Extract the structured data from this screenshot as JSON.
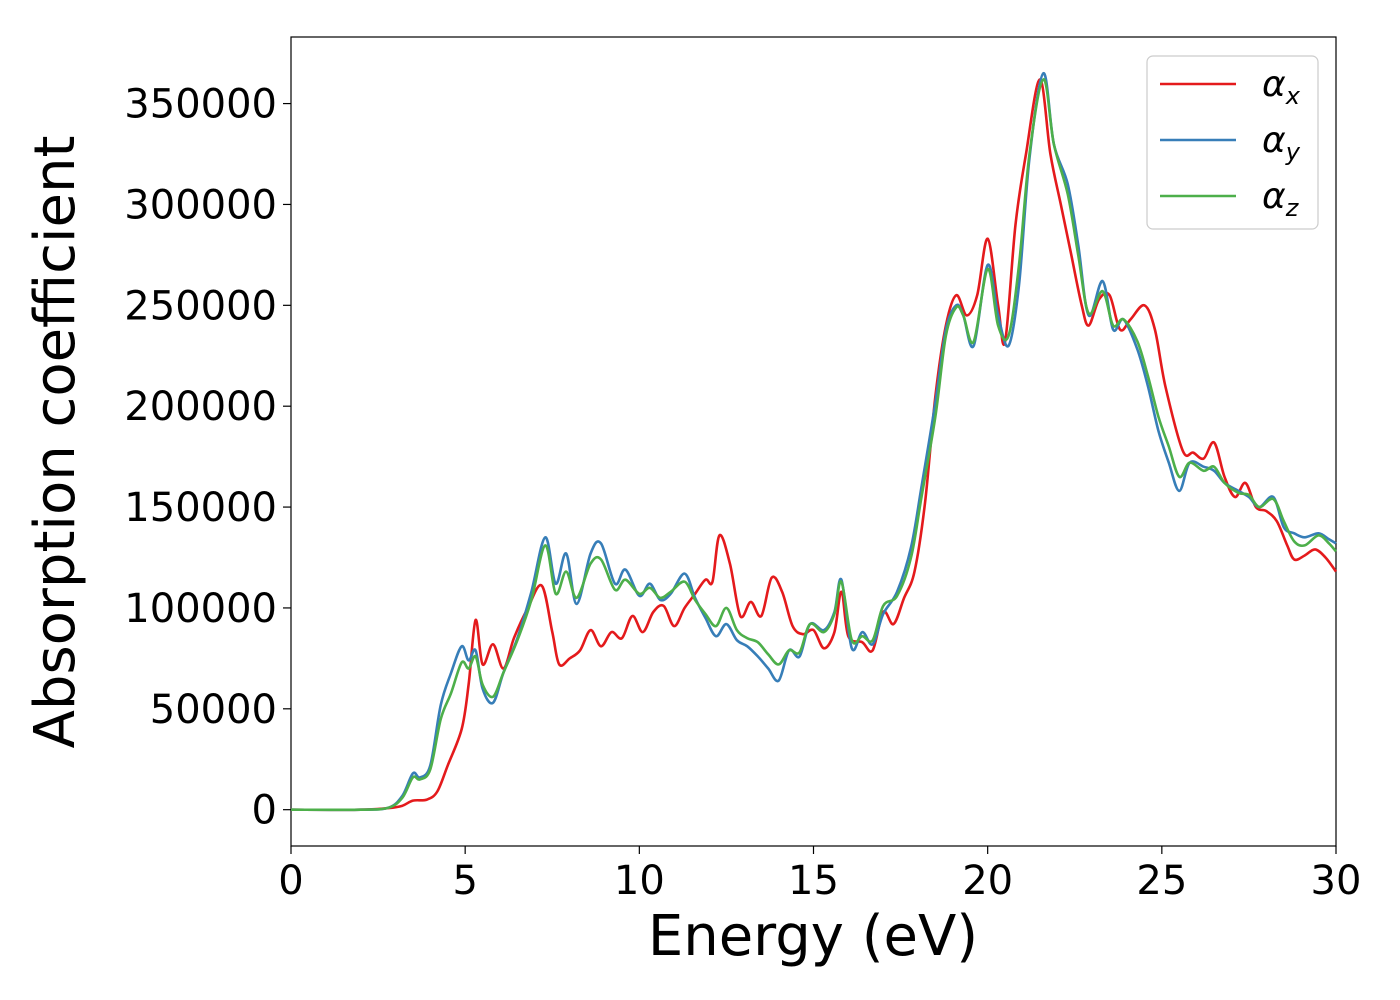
{
  "chart_data": {
    "type": "line",
    "xlabel": "Energy (eV)",
    "ylabel": "Absorption coefficient",
    "xlim": [
      0,
      30
    ],
    "ylim": [
      -18000,
      383000
    ],
    "x_ticks": [
      "0",
      "5",
      "10",
      "15",
      "20",
      "25",
      "30"
    ],
    "y_ticks": [
      "0",
      "50000",
      "100000",
      "150000",
      "200000",
      "250000",
      "300000",
      "350000"
    ],
    "grid": false,
    "legend_position": "top-right",
    "series": [
      {
        "name": "α",
        "subscript": "x",
        "color": "#e41a1c",
        "points": [
          [
            0,
            0
          ],
          [
            2,
            0
          ],
          [
            2.8,
            800
          ],
          [
            3.2,
            2000
          ],
          [
            3.5,
            4500
          ],
          [
            3.9,
            5000
          ],
          [
            4.2,
            9000
          ],
          [
            4.5,
            22000
          ],
          [
            4.9,
            40000
          ],
          [
            5.1,
            62000
          ],
          [
            5.3,
            94000
          ],
          [
            5.5,
            72000
          ],
          [
            5.8,
            82000
          ],
          [
            6.1,
            70000
          ],
          [
            6.4,
            85000
          ],
          [
            6.8,
            100000
          ],
          [
            7.2,
            111000
          ],
          [
            7.5,
            88000
          ],
          [
            7.7,
            72000
          ],
          [
            8.0,
            75000
          ],
          [
            8.3,
            79000
          ],
          [
            8.6,
            89000
          ],
          [
            8.9,
            81000
          ],
          [
            9.2,
            88000
          ],
          [
            9.5,
            85000
          ],
          [
            9.8,
            96000
          ],
          [
            10.1,
            88000
          ],
          [
            10.4,
            98000
          ],
          [
            10.7,
            101000
          ],
          [
            11.0,
            91000
          ],
          [
            11.3,
            100000
          ],
          [
            11.6,
            107000
          ],
          [
            11.9,
            114000
          ],
          [
            12.1,
            113000
          ],
          [
            12.3,
            136000
          ],
          [
            12.6,
            122000
          ],
          [
            12.9,
            96000
          ],
          [
            13.2,
            103000
          ],
          [
            13.5,
            96000
          ],
          [
            13.8,
            115000
          ],
          [
            14.1,
            108000
          ],
          [
            14.4,
            91000
          ],
          [
            14.7,
            87000
          ],
          [
            15.0,
            89000
          ],
          [
            15.3,
            80000
          ],
          [
            15.6,
            88000
          ],
          [
            15.8,
            108000
          ],
          [
            16.0,
            86000
          ],
          [
            16.4,
            83000
          ],
          [
            16.7,
            79000
          ],
          [
            17.0,
            98000
          ],
          [
            17.3,
            92000
          ],
          [
            17.6,
            105000
          ],
          [
            17.9,
            118000
          ],
          [
            18.2,
            152000
          ],
          [
            18.5,
            205000
          ],
          [
            18.8,
            240000
          ],
          [
            19.1,
            255000
          ],
          [
            19.4,
            245000
          ],
          [
            19.7,
            255000
          ],
          [
            20.0,
            283000
          ],
          [
            20.3,
            250000
          ],
          [
            20.5,
            232000
          ],
          [
            20.8,
            290000
          ],
          [
            21.1,
            325000
          ],
          [
            21.5,
            362000
          ],
          [
            21.8,
            325000
          ],
          [
            22.1,
            300000
          ],
          [
            22.4,
            275000
          ],
          [
            22.7,
            250000
          ],
          [
            22.9,
            240000
          ],
          [
            23.2,
            253000
          ],
          [
            23.5,
            255000
          ],
          [
            23.8,
            238000
          ],
          [
            24.1,
            243000
          ],
          [
            24.5,
            250000
          ],
          [
            24.8,
            238000
          ],
          [
            25.1,
            210000
          ],
          [
            25.6,
            178000
          ],
          [
            25.9,
            177000
          ],
          [
            26.2,
            174000
          ],
          [
            26.5,
            182000
          ],
          [
            26.8,
            165000
          ],
          [
            27.1,
            155000
          ],
          [
            27.4,
            162000
          ],
          [
            27.7,
            150000
          ],
          [
            28.0,
            148000
          ],
          [
            28.3,
            143000
          ],
          [
            28.6,
            131000
          ],
          [
            28.8,
            124000
          ],
          [
            29.1,
            126000
          ],
          [
            29.4,
            129000
          ],
          [
            29.7,
            125000
          ],
          [
            30,
            118000
          ]
        ]
      },
      {
        "name": "α",
        "subscript": "y",
        "color": "#377eb8",
        "points": [
          [
            0,
            0
          ],
          [
            2,
            0
          ],
          [
            2.8,
            1000
          ],
          [
            3.2,
            7000
          ],
          [
            3.5,
            18000
          ],
          [
            3.7,
            16000
          ],
          [
            4.0,
            22000
          ],
          [
            4.3,
            52000
          ],
          [
            4.6,
            68000
          ],
          [
            4.9,
            81000
          ],
          [
            5.1,
            74000
          ],
          [
            5.3,
            79000
          ],
          [
            5.5,
            60000
          ],
          [
            5.8,
            53000
          ],
          [
            6.1,
            68000
          ],
          [
            6.5,
            85000
          ],
          [
            6.9,
            108000
          ],
          [
            7.3,
            135000
          ],
          [
            7.6,
            112000
          ],
          [
            7.9,
            127000
          ],
          [
            8.2,
            102000
          ],
          [
            8.6,
            127000
          ],
          [
            8.9,
            132000
          ],
          [
            9.3,
            112000
          ],
          [
            9.6,
            119000
          ],
          [
            10.0,
            106000
          ],
          [
            10.3,
            112000
          ],
          [
            10.6,
            104000
          ],
          [
            10.9,
            107000
          ],
          [
            11.3,
            117000
          ],
          [
            11.6,
            105000
          ],
          [
            11.9,
            95000
          ],
          [
            12.2,
            86000
          ],
          [
            12.5,
            92000
          ],
          [
            12.8,
            84000
          ],
          [
            13.1,
            81000
          ],
          [
            13.4,
            76000
          ],
          [
            13.7,
            70000
          ],
          [
            14.0,
            64000
          ],
          [
            14.3,
            79000
          ],
          [
            14.6,
            76000
          ],
          [
            14.9,
            92000
          ],
          [
            15.3,
            89000
          ],
          [
            15.6,
            98000
          ],
          [
            15.8,
            114000
          ],
          [
            16.1,
            80000
          ],
          [
            16.4,
            88000
          ],
          [
            16.7,
            82000
          ],
          [
            17.0,
            97000
          ],
          [
            17.4,
            108000
          ],
          [
            17.8,
            130000
          ],
          [
            18.1,
            160000
          ],
          [
            18.5,
            202000
          ],
          [
            18.8,
            238000
          ],
          [
            19.1,
            250000
          ],
          [
            19.3,
            245000
          ],
          [
            19.6,
            230000
          ],
          [
            20.0,
            270000
          ],
          [
            20.3,
            245000
          ],
          [
            20.6,
            230000
          ],
          [
            20.9,
            260000
          ],
          [
            21.2,
            323000
          ],
          [
            21.6,
            365000
          ],
          [
            21.9,
            330000
          ],
          [
            22.3,
            310000
          ],
          [
            22.6,
            280000
          ],
          [
            22.9,
            245000
          ],
          [
            23.3,
            262000
          ],
          [
            23.6,
            238000
          ],
          [
            23.9,
            243000
          ],
          [
            24.3,
            228000
          ],
          [
            24.6,
            210000
          ],
          [
            24.9,
            188000
          ],
          [
            25.2,
            172000
          ],
          [
            25.5,
            158000
          ],
          [
            25.8,
            172000
          ],
          [
            26.2,
            170000
          ],
          [
            26.5,
            168000
          ],
          [
            26.8,
            162000
          ],
          [
            27.2,
            158000
          ],
          [
            27.5,
            155000
          ],
          [
            27.8,
            150000
          ],
          [
            28.2,
            155000
          ],
          [
            28.5,
            140000
          ],
          [
            28.8,
            137000
          ],
          [
            29.1,
            135000
          ],
          [
            29.5,
            137000
          ],
          [
            29.8,
            134000
          ],
          [
            30,
            132000
          ]
        ]
      },
      {
        "name": "α",
        "subscript": "z",
        "color": "#4daf4a",
        "points": [
          [
            0,
            0
          ],
          [
            2,
            0
          ],
          [
            2.8,
            1000
          ],
          [
            3.2,
            6000
          ],
          [
            3.5,
            16000
          ],
          [
            3.7,
            15000
          ],
          [
            4.0,
            20000
          ],
          [
            4.3,
            45000
          ],
          [
            4.6,
            58000
          ],
          [
            4.9,
            73000
          ],
          [
            5.1,
            70000
          ],
          [
            5.3,
            76000
          ],
          [
            5.5,
            62000
          ],
          [
            5.8,
            56000
          ],
          [
            6.1,
            68000
          ],
          [
            6.5,
            84000
          ],
          [
            6.9,
            104000
          ],
          [
            7.3,
            131000
          ],
          [
            7.6,
            107000
          ],
          [
            7.9,
            118000
          ],
          [
            8.2,
            105000
          ],
          [
            8.6,
            122000
          ],
          [
            8.9,
            124000
          ],
          [
            9.3,
            109000
          ],
          [
            9.6,
            114000
          ],
          [
            10.0,
            107000
          ],
          [
            10.3,
            110000
          ],
          [
            10.6,
            105000
          ],
          [
            10.9,
            108000
          ],
          [
            11.3,
            113000
          ],
          [
            11.6,
            104000
          ],
          [
            11.9,
            97000
          ],
          [
            12.2,
            91000
          ],
          [
            12.5,
            100000
          ],
          [
            12.8,
            89000
          ],
          [
            13.1,
            85000
          ],
          [
            13.4,
            83000
          ],
          [
            13.7,
            77000
          ],
          [
            14.0,
            72000
          ],
          [
            14.3,
            79000
          ],
          [
            14.6,
            78000
          ],
          [
            14.9,
            92000
          ],
          [
            15.3,
            88000
          ],
          [
            15.6,
            97000
          ],
          [
            15.8,
            113000
          ],
          [
            16.1,
            84000
          ],
          [
            16.4,
            86000
          ],
          [
            16.7,
            84000
          ],
          [
            17.0,
            101000
          ],
          [
            17.4,
            106000
          ],
          [
            17.8,
            125000
          ],
          [
            18.1,
            155000
          ],
          [
            18.5,
            195000
          ],
          [
            18.8,
            235000
          ],
          [
            19.1,
            249000
          ],
          [
            19.3,
            245000
          ],
          [
            19.6,
            232000
          ],
          [
            20.0,
            268000
          ],
          [
            20.3,
            240000
          ],
          [
            20.6,
            235000
          ],
          [
            20.9,
            270000
          ],
          [
            21.2,
            325000
          ],
          [
            21.6,
            362000
          ],
          [
            21.9,
            330000
          ],
          [
            22.3,
            305000
          ],
          [
            22.6,
            275000
          ],
          [
            22.9,
            246000
          ],
          [
            23.3,
            257000
          ],
          [
            23.6,
            240000
          ],
          [
            23.9,
            243000
          ],
          [
            24.3,
            232000
          ],
          [
            24.6,
            215000
          ],
          [
            24.9,
            195000
          ],
          [
            25.2,
            180000
          ],
          [
            25.5,
            165000
          ],
          [
            25.8,
            172000
          ],
          [
            26.2,
            168000
          ],
          [
            26.5,
            170000
          ],
          [
            26.8,
            162000
          ],
          [
            27.2,
            157000
          ],
          [
            27.5,
            156000
          ],
          [
            27.8,
            150000
          ],
          [
            28.2,
            154000
          ],
          [
            28.5,
            143000
          ],
          [
            28.8,
            133000
          ],
          [
            29.1,
            131000
          ],
          [
            29.5,
            136000
          ],
          [
            29.8,
            132000
          ],
          [
            30,
            128000
          ]
        ]
      }
    ]
  }
}
